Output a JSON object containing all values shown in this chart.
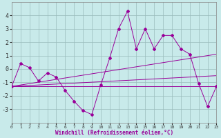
{
  "xlabel": "Windchill (Refroidissement éolien,°C)",
  "background_color": "#c8eaea",
  "line_color": "#990099",
  "grid_color": "#99bbbb",
  "xlim": [
    0,
    23
  ],
  "ylim": [
    -4,
    5
  ],
  "yticks": [
    -3,
    -2,
    -1,
    0,
    1,
    2,
    3,
    4
  ],
  "xticks": [
    0,
    1,
    2,
    3,
    4,
    5,
    6,
    7,
    8,
    9,
    10,
    11,
    12,
    13,
    14,
    15,
    16,
    17,
    18,
    19,
    20,
    21,
    22,
    23
  ],
  "main_line": {
    "x": [
      0,
      1,
      2,
      3,
      4,
      5,
      6,
      7,
      8,
      9,
      10,
      11,
      12,
      13,
      14,
      15,
      16,
      17,
      18,
      19,
      20,
      21,
      22,
      23
    ],
    "y": [
      -1.3,
      0.4,
      0.1,
      -0.9,
      -0.3,
      -0.6,
      -1.6,
      -2.4,
      -3.1,
      -3.4,
      -1.2,
      0.8,
      3.0,
      4.3,
      1.5,
      3.0,
      1.5,
      2.5,
      2.5,
      1.5,
      1.1,
      -1.1,
      -2.8,
      -1.3
    ]
  },
  "trend_line1": {
    "x": [
      0,
      23
    ],
    "y": [
      -1.3,
      1.1
    ]
  },
  "trend_line2": {
    "x": [
      0,
      23
    ],
    "y": [
      -1.3,
      -0.5
    ]
  },
  "trend_line3": {
    "x": [
      0,
      23
    ],
    "y": [
      -1.3,
      -1.3
    ]
  }
}
